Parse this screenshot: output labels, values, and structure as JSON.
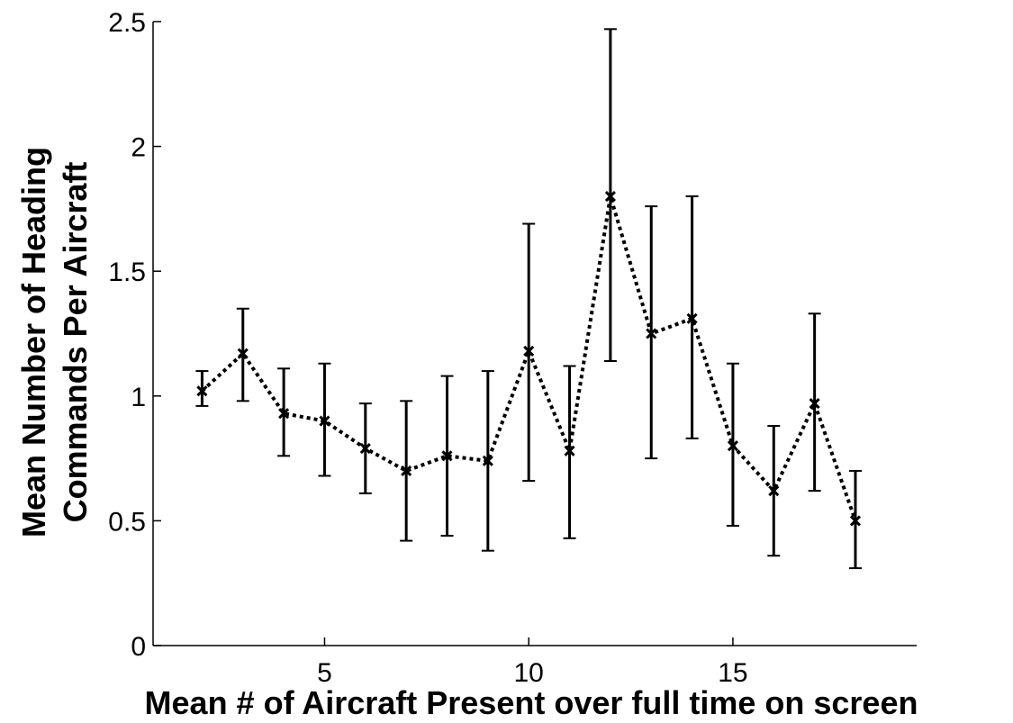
{
  "chart_data": {
    "type": "line",
    "title": "",
    "xlabel": "Mean # of Aircraft Present over full time on screen",
    "ylabel_lines": [
      "Mean Number of Heading",
      "Commands Per Aircraft"
    ],
    "xlim": [
      0.8,
      19.5
    ],
    "ylim": [
      0,
      2.5
    ],
    "xticks": [
      5,
      10,
      15
    ],
    "yticks": [
      0,
      0.5,
      1,
      1.5,
      2,
      2.5
    ],
    "ytick_labels": [
      "0",
      "0.5",
      "1",
      "1.5",
      "2",
      "2.5"
    ],
    "grid": false,
    "legend": "none",
    "line_style": "dotted",
    "marker": "x",
    "color": "#000000",
    "series": [
      {
        "x": [
          2,
          3,
          4,
          5,
          6,
          7,
          8,
          9,
          10,
          11,
          12,
          13,
          14,
          15,
          16,
          17,
          18
        ],
        "values": [
          1.02,
          1.17,
          0.93,
          0.9,
          0.79,
          0.7,
          0.76,
          0.74,
          1.18,
          0.78,
          1.8,
          1.25,
          1.31,
          0.8,
          0.62,
          0.97,
          0.5
        ],
        "error_lower": [
          0.96,
          0.98,
          0.76,
          0.68,
          0.61,
          0.42,
          0.44,
          0.38,
          0.66,
          0.43,
          1.14,
          0.75,
          0.83,
          0.48,
          0.36,
          0.62,
          0.31
        ],
        "error_upper": [
          1.1,
          1.35,
          1.11,
          1.13,
          0.97,
          0.98,
          1.08,
          1.1,
          1.69,
          1.12,
          2.47,
          1.76,
          1.8,
          1.13,
          0.88,
          1.33,
          0.7
        ]
      }
    ]
  }
}
